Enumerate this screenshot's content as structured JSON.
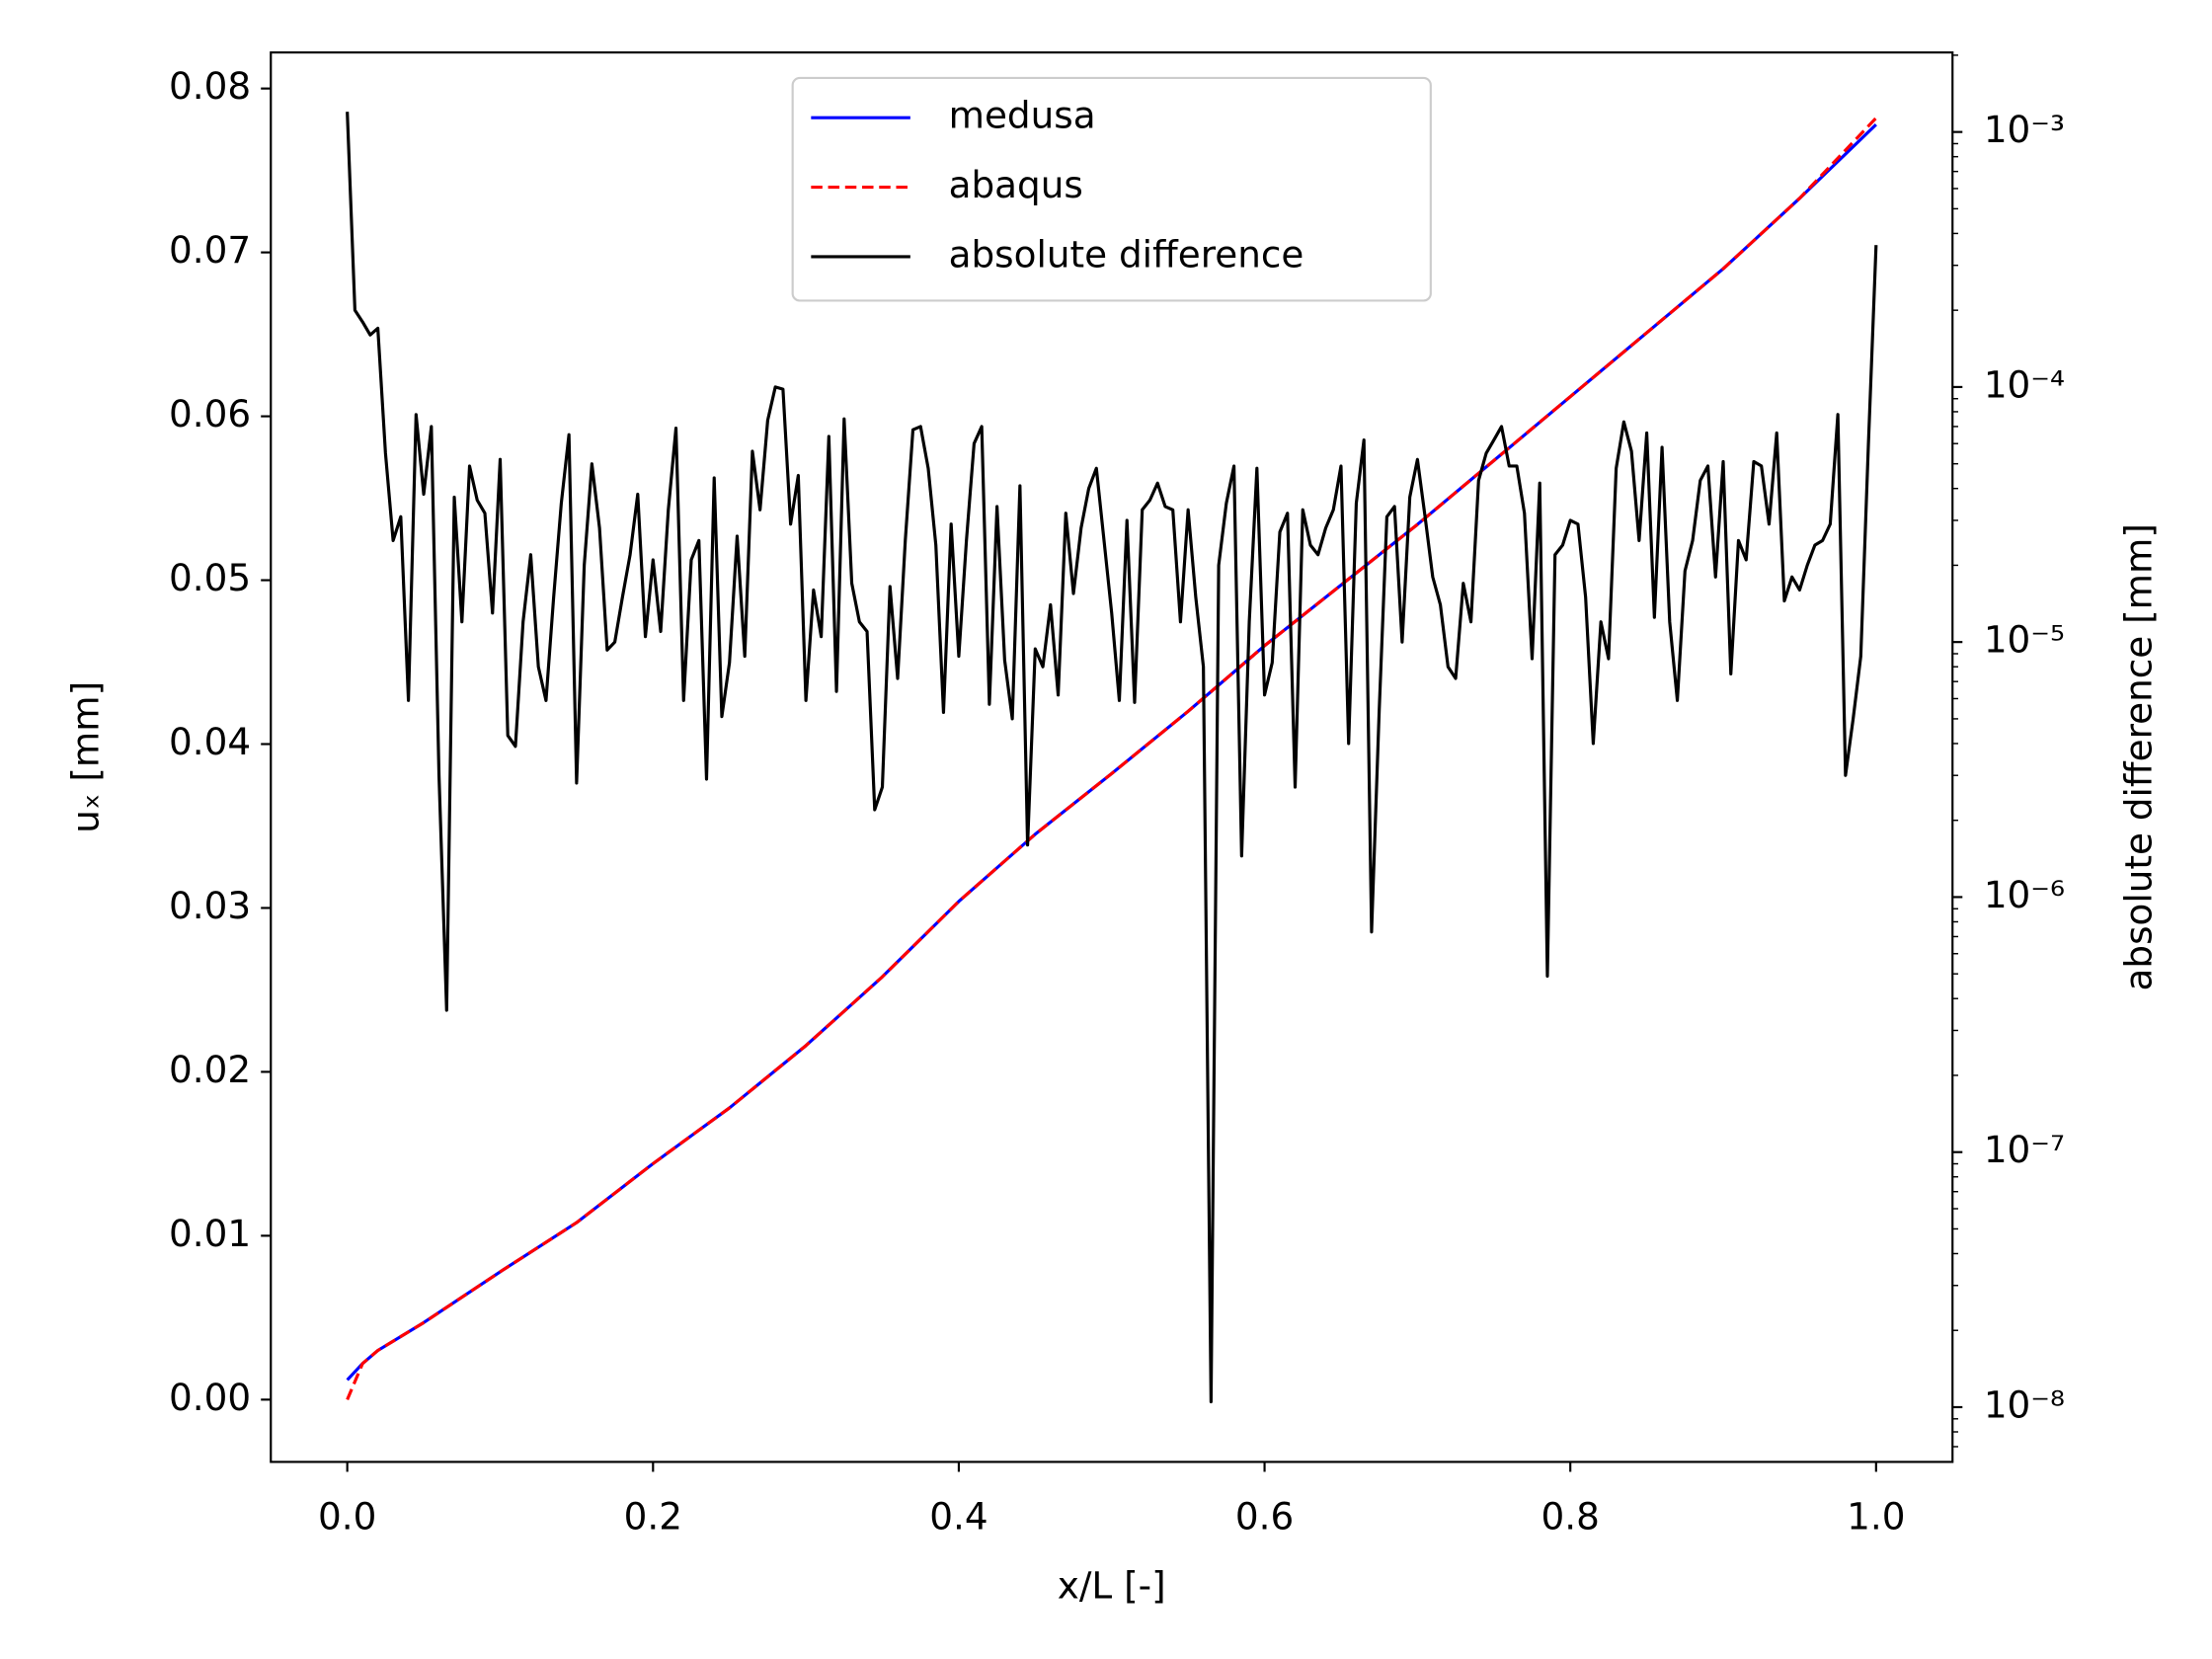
{
  "chart_data": {
    "type": "line",
    "xlabel": "x/L [-]",
    "ylabel": "uₓ [mm]",
    "y2label": "absolute difference [mm]",
    "xlim": [
      -0.05,
      1.05
    ],
    "xticks": [
      {
        "value": 0,
        "label": "0.0"
      },
      0.2,
      0.4,
      0.6,
      0.8,
      {
        "value": 1,
        "label": "1.0"
      }
    ],
    "ylim": [
      -0.0038,
      0.0822
    ],
    "yticks": [
      {
        "value": 0,
        "label": "0.00"
      },
      0.01,
      0.02,
      0.03,
      0.04,
      0.05,
      0.06,
      0.07,
      0.08
    ],
    "y2lim": [
      6.1e-09,
      0.00205
    ],
    "y2scale": "log",
    "y2ticks": [
      {
        "value": 1e-08,
        "label": "10⁻⁸"
      },
      {
        "value": 1e-07,
        "label": "10⁻⁷"
      },
      {
        "value": 1e-06,
        "label": "10⁻⁶"
      },
      {
        "value": 1e-05,
        "label": "10⁻⁵"
      },
      {
        "value": 0.0001,
        "label": "10⁻⁴"
      },
      {
        "value": 0.001,
        "label": "10⁻³"
      }
    ],
    "legend": "upper center",
    "series": [
      {
        "name": "medusa",
        "color": "#0000ff",
        "linestyle": "solid",
        "x": [
          0,
          0.01,
          0.02,
          0.05,
          0.1,
          0.15,
          0.2,
          0.25,
          0.3,
          0.35,
          0.4,
          0.45,
          0.5,
          0.55,
          0.6,
          0.65,
          0.7,
          0.75,
          0.8,
          0.85,
          0.9,
          0.95,
          1
        ],
        "values": [
          0.0012,
          0.0022,
          0.003,
          0.0047,
          0.0078,
          0.0108,
          0.0144,
          0.0178,
          0.0216,
          0.0258,
          0.0304,
          0.0345,
          0.0382,
          0.042,
          0.046,
          0.0497,
          0.0534,
          0.0573,
          0.0612,
          0.0651,
          0.069,
          0.0733,
          0.0778
        ]
      },
      {
        "name": "abaqus",
        "color": "#ff0000",
        "linestyle": "dashed",
        "x": [
          0,
          0.01,
          0.02,
          0.05,
          0.1,
          0.15,
          0.2,
          0.25,
          0.3,
          0.35,
          0.4,
          0.45,
          0.5,
          0.55,
          0.6,
          0.65,
          0.7,
          0.75,
          0.8,
          0.85,
          0.9,
          0.95,
          1
        ],
        "values": [
          0,
          0.0022,
          0.003,
          0.0047,
          0.0078,
          0.0108,
          0.0144,
          0.0178,
          0.0216,
          0.0258,
          0.0304,
          0.0345,
          0.0382,
          0.042,
          0.046,
          0.0497,
          0.0534,
          0.0573,
          0.0612,
          0.0651,
          0.069,
          0.0733,
          0.0782
        ]
      },
      {
        "name": "absolute difference",
        "color": "#000000",
        "linestyle": "solid",
        "axis": "y2",
        "x": [
          0,
          0.005,
          0.01,
          0.015,
          0.02,
          0.025,
          0.03,
          0.035,
          0.04,
          0.045,
          0.05,
          0.055,
          0.06,
          0.065,
          0.07,
          0.075,
          0.08,
          0.085,
          0.09,
          0.095,
          0.1,
          0.105,
          0.11,
          0.115,
          0.12,
          0.125,
          0.13,
          0.135,
          0.14,
          0.145,
          0.15,
          0.155,
          0.16,
          0.165,
          0.17,
          0.175,
          0.18,
          0.185,
          0.19,
          0.195,
          0.2,
          0.205,
          0.21,
          0.215,
          0.22,
          0.225,
          0.23,
          0.235,
          0.24,
          0.245,
          0.25,
          0.255,
          0.26,
          0.265,
          0.27,
          0.275,
          0.28,
          0.285,
          0.29,
          0.295,
          0.3,
          0.305,
          0.31,
          0.315,
          0.32,
          0.325,
          0.33,
          0.335,
          0.34,
          0.345,
          0.35,
          0.355,
          0.36,
          0.365,
          0.37,
          0.375,
          0.38,
          0.385,
          0.39,
          0.395,
          0.4,
          0.405,
          0.41,
          0.415,
          0.42,
          0.425,
          0.43,
          0.435,
          0.44,
          0.445,
          0.45,
          0.455,
          0.46,
          0.465,
          0.47,
          0.475,
          0.48,
          0.485,
          0.49,
          0.495,
          0.5,
          0.505,
          0.51,
          0.515,
          0.52,
          0.525,
          0.53,
          0.535,
          0.54,
          0.545,
          0.55,
          0.555,
          0.56,
          0.565,
          0.57,
          0.575,
          0.58,
          0.585,
          0.59,
          0.595,
          0.6,
          0.605,
          0.61,
          0.615,
          0.62,
          0.625,
          0.63,
          0.635,
          0.64,
          0.645,
          0.65,
          0.655,
          0.66,
          0.665,
          0.67,
          0.675,
          0.68,
          0.685,
          0.69,
          0.695,
          0.7,
          0.705,
          0.71,
          0.715,
          0.72,
          0.725,
          0.73,
          0.735,
          0.74,
          0.745,
          0.75,
          0.755,
          0.76,
          0.765,
          0.77,
          0.775,
          0.78,
          0.785,
          0.79,
          0.795,
          0.8,
          0.805,
          0.81,
          0.815,
          0.82,
          0.825,
          0.83,
          0.835,
          0.84,
          0.845,
          0.85,
          0.855,
          0.86,
          0.865,
          0.87,
          0.875,
          0.88,
          0.885,
          0.89,
          0.895,
          0.9,
          0.905,
          0.91,
          0.915,
          0.92,
          0.925,
          0.93,
          0.935,
          0.94,
          0.945,
          0.95,
          0.955,
          0.96,
          0.965,
          0.97,
          0.975,
          0.98,
          0.985,
          0.99,
          0.995,
          1
        ],
        "values": [
          0.0012,
          0.0002,
          0.00018,
          0.00016,
          0.00017,
          5.5e-05,
          2.5e-05,
          3.1e-05,
          5.9e-06,
          7.8e-05,
          3.8e-05,
          7e-05,
          3e-06,
          3.6e-07,
          3.7e-05,
          1.2e-05,
          4.9e-05,
          3.6e-05,
          3.2e-05,
          1.3e-05,
          5.2e-05,
          4.3e-06,
          3.9e-06,
          1.2e-05,
          2.2e-05,
          8e-06,
          5.9e-06,
          1.5e-05,
          3.5e-05,
          6.5e-05,
          2.8e-06,
          2e-05,
          5e-05,
          2.8e-05,
          9.3e-06,
          1e-05,
          1.5e-05,
          2.2e-05,
          3.8e-05,
          1.05e-05,
          2.1e-05,
          1.1e-05,
          3.3e-05,
          6.9e-05,
          5.9e-06,
          2.1e-05,
          2.5e-05,
          2.9e-06,
          4.4e-05,
          5.1e-06,
          8.3e-06,
          2.6e-05,
          8.8e-06,
          5.6e-05,
          3.3e-05,
          7.4e-05,
          0.0001,
          9.8e-05,
          2.9e-05,
          4.5e-05,
          5.9e-06,
          1.6e-05,
          1.05e-05,
          6.4e-05,
          6.4e-06,
          7.5e-05,
          1.7e-05,
          1.2e-05,
          1.1e-05,
          2.2e-06,
          2.7e-06,
          1.65e-05,
          7.2e-06,
          2.5e-05,
          6.8e-05,
          7e-05,
          4.8e-05,
          2.4e-05,
          5.3e-06,
          2.9e-05,
          8.8e-06,
          2.5e-05,
          6e-05,
          7e-05,
          5.7e-06,
          3.4e-05,
          8.5e-06,
          5e-06,
          4.1e-05,
          1.6e-06,
          9.4e-06,
          8e-06,
          1.4e-05,
          6.2e-06,
          3.2e-05,
          1.55e-05,
          2.8e-05,
          4e-05,
          4.8e-05,
          2.5e-05,
          1.3e-05,
          5.9e-06,
          3e-05,
          5.8e-06,
          3.3e-05,
          3.6e-05,
          4.2e-05,
          3.4e-05,
          3.3e-05,
          1.2e-05,
          3.3e-05,
          1.5e-05,
          8e-06,
          1.05e-08,
          2e-05,
          3.5e-05,
          4.9e-05,
          1.45e-06,
          1.2e-05,
          4.8e-05,
          6.2e-06,
          8.3e-06,
          2.7e-05,
          3.2e-05,
          2.7e-06,
          3.3e-05,
          2.4e-05,
          2.2e-05,
          2.8e-05,
          3.3e-05,
          4.9e-05,
          4e-06,
          3.5e-05,
          6.2e-05,
          7.3e-07,
          5.4e-06,
          3.1e-05,
          3.4e-05,
          1e-05,
          3.7e-05,
          5.2e-05,
          3.1e-05,
          1.8e-05,
          1.4e-05,
          8e-06,
          7.2e-06,
          1.7e-05,
          1.2e-05,
          4.3e-05,
          5.5e-05,
          6.2e-05,
          7e-05,
          4.9e-05,
          4.9e-05,
          3.2e-05,
          8.6e-06,
          4.2e-05,
          4.9e-07,
          2.2e-05,
          2.4e-05,
          3e-05,
          2.9e-05,
          1.5e-05,
          4e-06,
          1.2e-05,
          8.6e-06,
          4.8e-05,
          7.3e-05,
          5.6e-05,
          2.5e-05,
          6.6e-05,
          1.25e-05,
          5.8e-05,
          1.2e-05,
          5.9e-06,
          1.9e-05,
          2.5e-05,
          4.3e-05,
          4.9e-05,
          1.8e-05,
          5.1e-05,
          7.5e-06,
          2.5e-05,
          2.1e-05,
          5.1e-05,
          4.9e-05,
          2.9e-05,
          6.6e-05,
          1.45e-05,
          1.8e-05,
          1.6e-05,
          2e-05,
          2.4e-05,
          2.5e-05,
          2.9e-05,
          7.8e-05,
          3e-06,
          5e-06,
          8.8e-06,
          6e-05,
          0.00036
        ]
      }
    ]
  }
}
